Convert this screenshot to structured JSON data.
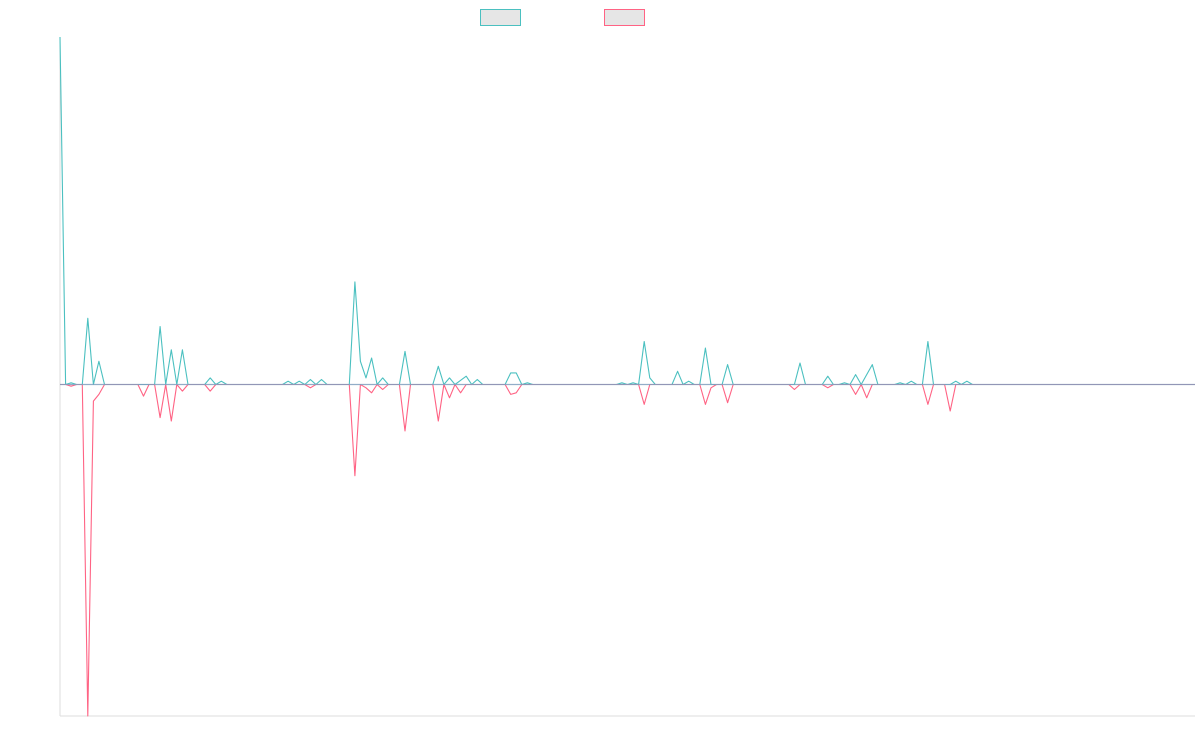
{
  "chart_data": {
    "type": "line",
    "title": "",
    "xlabel": "",
    "ylabel": "",
    "x_count": 205,
    "ylim": [
      -100,
      100
    ],
    "grid": false,
    "legend": "top-center",
    "colors": {
      "series_a": "#4bc0c0",
      "series_b": "#ff6384",
      "legend_fill": "#e6e6e6",
      "baseline": "#7f9fbf",
      "axis": "#dddddd"
    },
    "series": [
      {
        "name": "",
        "color": "#4bc0c0",
        "points": [
          [
            0,
            105
          ],
          [
            1,
            0
          ],
          [
            2,
            0.5
          ],
          [
            3,
            0
          ],
          [
            4,
            0
          ],
          [
            5,
            20
          ],
          [
            6,
            0
          ],
          [
            7,
            7
          ],
          [
            8,
            0
          ],
          [
            10,
            0
          ],
          [
            12,
            0
          ],
          [
            14,
            0
          ],
          [
            15,
            0
          ],
          [
            16,
            0
          ],
          [
            17,
            0
          ],
          [
            18,
            17.5
          ],
          [
            19,
            0
          ],
          [
            20,
            10.5
          ],
          [
            21,
            0
          ],
          [
            22,
            10.5
          ],
          [
            23,
            0
          ],
          [
            25,
            0
          ],
          [
            26,
            0
          ],
          [
            27,
            2
          ],
          [
            28,
            0
          ],
          [
            29,
            1
          ],
          [
            30,
            0
          ],
          [
            40,
            0
          ],
          [
            41,
            1
          ],
          [
            42,
            0
          ],
          [
            43,
            1
          ],
          [
            44,
            0
          ],
          [
            45,
            1.5
          ],
          [
            46,
            0
          ],
          [
            47,
            1.5
          ],
          [
            48,
            0
          ],
          [
            50,
            0
          ],
          [
            51,
            0
          ],
          [
            52,
            0
          ],
          [
            53,
            31
          ],
          [
            54,
            7
          ],
          [
            55,
            2
          ],
          [
            56,
            8
          ],
          [
            57,
            0
          ],
          [
            58,
            2
          ],
          [
            59,
            0
          ],
          [
            60,
            0
          ],
          [
            61,
            0
          ],
          [
            62,
            10
          ],
          [
            63,
            0
          ],
          [
            65,
            0
          ],
          [
            67,
            0
          ],
          [
            68,
            5.5
          ],
          [
            69,
            0
          ],
          [
            70,
            2
          ],
          [
            71,
            0
          ],
          [
            73,
            2.5
          ],
          [
            74,
            0
          ],
          [
            75,
            1.5
          ],
          [
            76,
            0
          ],
          [
            80,
            0
          ],
          [
            81,
            3.5
          ],
          [
            82,
            3.5
          ],
          [
            83,
            0
          ],
          [
            84,
            0.5
          ],
          [
            85,
            0
          ],
          [
            100,
            0
          ],
          [
            101,
            0.5
          ],
          [
            102,
            0
          ],
          [
            103,
            0.5
          ],
          [
            104,
            0
          ],
          [
            105,
            13
          ],
          [
            106,
            2
          ],
          [
            107,
            0
          ],
          [
            110,
            0
          ],
          [
            111,
            4
          ],
          [
            112,
            0
          ],
          [
            113,
            1
          ],
          [
            114,
            0
          ],
          [
            115,
            0
          ],
          [
            116,
            11
          ],
          [
            117,
            0
          ],
          [
            118,
            0
          ],
          [
            119,
            0
          ],
          [
            120,
            6
          ],
          [
            121,
            0
          ],
          [
            128,
            0
          ],
          [
            129,
            0
          ],
          [
            130,
            0
          ],
          [
            131,
            0
          ],
          [
            132,
            0
          ],
          [
            133,
            6.5
          ],
          [
            134,
            0
          ],
          [
            137,
            0
          ],
          [
            138,
            2.5
          ],
          [
            139,
            0
          ],
          [
            140,
            0
          ],
          [
            141,
            0.5
          ],
          [
            142,
            0
          ],
          [
            143,
            3
          ],
          [
            144,
            0
          ],
          [
            145,
            3
          ],
          [
            146,
            6
          ],
          [
            147,
            0
          ],
          [
            150,
            0
          ],
          [
            151,
            0.5
          ],
          [
            152,
            0
          ],
          [
            153,
            1
          ],
          [
            154,
            0
          ],
          [
            155,
            0
          ],
          [
            156,
            13
          ],
          [
            157,
            0
          ],
          [
            160,
            0
          ],
          [
            161,
            1
          ],
          [
            162,
            0
          ],
          [
            163,
            1
          ],
          [
            164,
            0
          ],
          [
            204,
            0
          ]
        ]
      },
      {
        "name": "",
        "color": "#ff6384",
        "points": [
          [
            0,
            0
          ],
          [
            1,
            0
          ],
          [
            2,
            -0.5
          ],
          [
            3,
            0
          ],
          [
            4,
            0
          ],
          [
            5,
            -100
          ],
          [
            6,
            -5
          ],
          [
            7,
            -3
          ],
          [
            8,
            0
          ],
          [
            14,
            0
          ],
          [
            15,
            -3.5
          ],
          [
            16,
            0
          ],
          [
            17,
            0
          ],
          [
            18,
            -10
          ],
          [
            19,
            0
          ],
          [
            20,
            -11
          ],
          [
            21,
            0
          ],
          [
            22,
            -2
          ],
          [
            23,
            0
          ],
          [
            25,
            0
          ],
          [
            26,
            0
          ],
          [
            27,
            -2
          ],
          [
            28,
            0
          ],
          [
            44,
            0
          ],
          [
            45,
            -1
          ],
          [
            46,
            0
          ],
          [
            50,
            0
          ],
          [
            51,
            0
          ],
          [
            52,
            0
          ],
          [
            53,
            -27.5
          ],
          [
            54,
            0
          ],
          [
            55,
            -1
          ],
          [
            56,
            -2.5
          ],
          [
            57,
            0
          ],
          [
            58,
            -1.5
          ],
          [
            59,
            0
          ],
          [
            60,
            0
          ],
          [
            61,
            0
          ],
          [
            62,
            -14
          ],
          [
            63,
            0
          ],
          [
            67,
            0
          ],
          [
            68,
            -11
          ],
          [
            69,
            0
          ],
          [
            70,
            -4
          ],
          [
            71,
            0
          ],
          [
            72,
            -2.5
          ],
          [
            73,
            0
          ],
          [
            80,
            0
          ],
          [
            81,
            -3
          ],
          [
            82,
            -2.5
          ],
          [
            83,
            0
          ],
          [
            104,
            0
          ],
          [
            105,
            -6
          ],
          [
            106,
            0
          ],
          [
            114,
            0
          ],
          [
            115,
            0
          ],
          [
            116,
            -6
          ],
          [
            117,
            -1
          ],
          [
            118,
            0
          ],
          [
            119,
            0
          ],
          [
            120,
            -5.5
          ],
          [
            121,
            0
          ],
          [
            131,
            0
          ],
          [
            132,
            -1.5
          ],
          [
            133,
            0
          ],
          [
            137,
            0
          ],
          [
            138,
            -1
          ],
          [
            139,
            0
          ],
          [
            142,
            0
          ],
          [
            143,
            -3
          ],
          [
            144,
            0
          ],
          [
            145,
            -4
          ],
          [
            146,
            0
          ],
          [
            155,
            0
          ],
          [
            156,
            -6
          ],
          [
            157,
            0
          ],
          [
            159,
            0
          ],
          [
            160,
            -8
          ],
          [
            161,
            0
          ],
          [
            204,
            0
          ]
        ]
      }
    ]
  }
}
